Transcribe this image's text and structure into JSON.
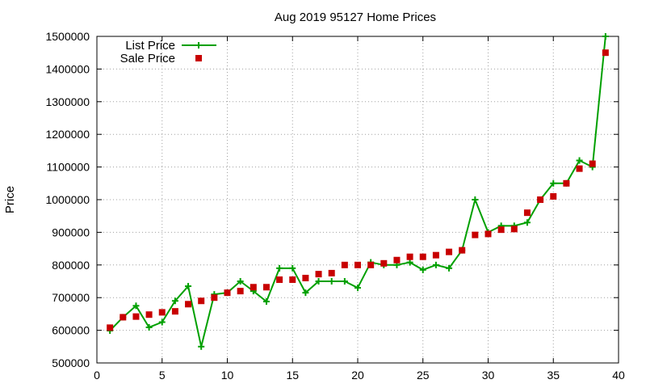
{
  "chart_data": {
    "type": "line",
    "title": "Aug 2019 95127 Home Prices",
    "xlabel": "",
    "ylabel": "Price",
    "xlim": [
      0,
      40
    ],
    "ylim": [
      500000,
      1500000
    ],
    "xticks": [
      "0",
      "5",
      "10",
      "15",
      "20",
      "25",
      "30",
      "35",
      "40"
    ],
    "yticks": [
      "500000",
      "600000",
      "700000",
      "800000",
      "900000",
      "1000000",
      "1100000",
      "1200000",
      "1300000",
      "1400000",
      "1500000"
    ],
    "grid": true,
    "legend_position": "top-left",
    "x": [
      1,
      2,
      3,
      4,
      5,
      6,
      7,
      8,
      9,
      10,
      11,
      12,
      13,
      14,
      15,
      16,
      17,
      18,
      19,
      20,
      21,
      22,
      23,
      24,
      25,
      26,
      27,
      28,
      29,
      30,
      31,
      32,
      33,
      34,
      35,
      36,
      37,
      38,
      39
    ],
    "series": [
      {
        "name": "List Price",
        "style": "line-cross",
        "color": "#00a000",
        "values": [
          599000,
          640000,
          675000,
          609000,
          625000,
          690000,
          735000,
          550000,
          710000,
          715000,
          750000,
          720000,
          688000,
          790000,
          790000,
          715000,
          750000,
          750000,
          750000,
          730000,
          808000,
          800000,
          800000,
          808000,
          785000,
          800000,
          790000,
          845000,
          1000000,
          900000,
          920000,
          920000,
          930000,
          1000000,
          1050000,
          1050000,
          1120000,
          1100000,
          1500000
        ]
      },
      {
        "name": "Sale Price",
        "style": "square",
        "color": "#c80000",
        "values": [
          608000,
          640000,
          642000,
          648000,
          655000,
          658000,
          680000,
          690000,
          700000,
          715000,
          720000,
          732000,
          732000,
          755000,
          755000,
          760000,
          772000,
          775000,
          800000,
          800000,
          800000,
          805000,
          815000,
          825000,
          825000,
          830000,
          840000,
          845000,
          892000,
          895000,
          908000,
          910000,
          960000,
          1000000,
          1010000,
          1050000,
          1095000,
          1110000,
          1450000
        ]
      }
    ]
  }
}
